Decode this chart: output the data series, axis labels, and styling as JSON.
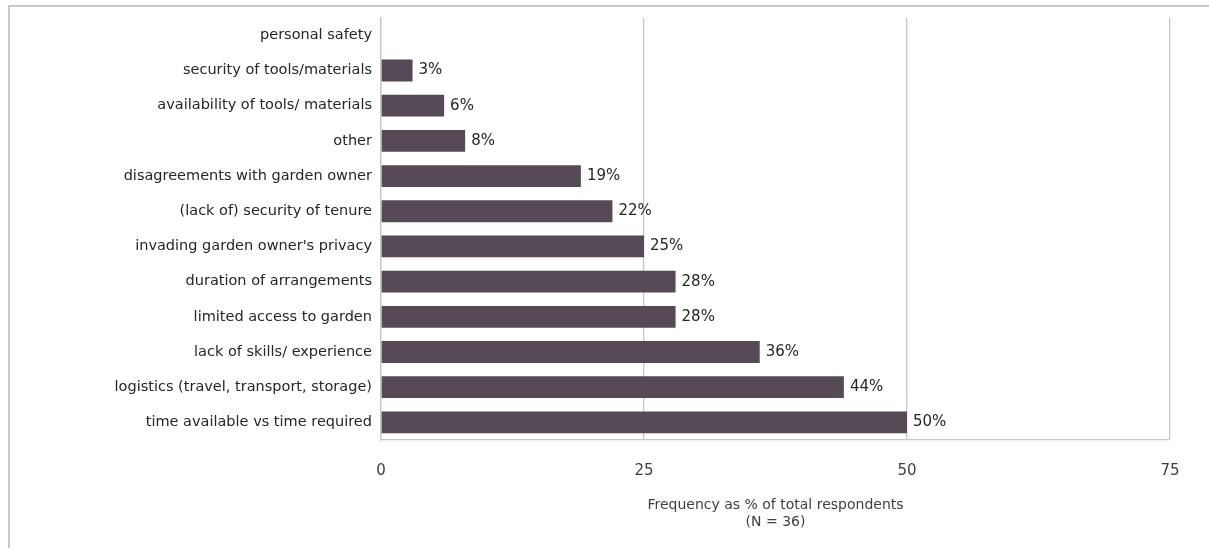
{
  "chart_data": {
    "type": "bar",
    "orientation": "horizontal",
    "categories": [
      "personal safety",
      "security of tools/materials",
      "availability of tools/ materials",
      "other",
      "disagreements with garden owner",
      "(lack of) security of tenure",
      "invading garden owner's privacy",
      "duration of arrangements",
      "limited access to garden",
      "lack of skills/ experience",
      "logistics (travel, transport, storage)",
      "time available vs time required"
    ],
    "values": [
      0,
      3,
      6,
      8,
      19,
      22,
      25,
      28,
      28,
      36,
      44,
      50
    ],
    "value_labels": [
      null,
      "3%",
      "6%",
      "8%",
      "19%",
      "22%",
      "25%",
      "28%",
      "28%",
      "36%",
      "44%",
      "50%"
    ],
    "color": "#564a57",
    "xlim": [
      0,
      75
    ],
    "xticks": [
      0,
      25,
      50,
      75
    ],
    "xlabel": "Frequency as % of total respondents\n(N = 36)",
    "grid": "x"
  }
}
